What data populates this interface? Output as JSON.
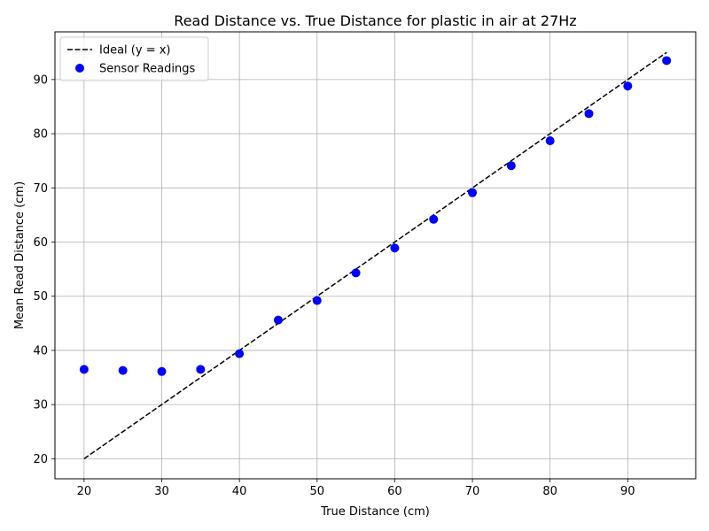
{
  "chart_data": {
    "type": "scatter",
    "title": "Read Distance vs. True Distance for plastic in air at 27Hz",
    "xlabel": "True Distance (cm)",
    "ylabel": "Mean Read Distance (cm)",
    "xlim": [
      16.25,
      98.75
    ],
    "ylim": [
      16.3,
      98.8
    ],
    "xticks": [
      20,
      30,
      40,
      50,
      60,
      70,
      80,
      90
    ],
    "yticks": [
      20,
      30,
      40,
      50,
      60,
      70,
      80,
      90
    ],
    "grid": true,
    "legend_position": "upper-left",
    "series": [
      {
        "name": "Ideal (y = x)",
        "kind": "line",
        "style": "dashed",
        "color": "#000000",
        "x": [
          20,
          95
        ],
        "y": [
          20,
          95
        ]
      },
      {
        "name": "Sensor Readings",
        "kind": "scatter",
        "color": "#0000ff",
        "x": [
          20,
          25,
          30,
          35,
          40,
          45,
          50,
          55,
          60,
          65,
          70,
          75,
          80,
          85,
          90,
          95
        ],
        "y": [
          36.5,
          36.3,
          36.1,
          36.5,
          39.4,
          45.6,
          49.2,
          54.3,
          58.9,
          64.2,
          69.1,
          74.1,
          78.7,
          83.7,
          88.8,
          93.5
        ]
      }
    ]
  }
}
